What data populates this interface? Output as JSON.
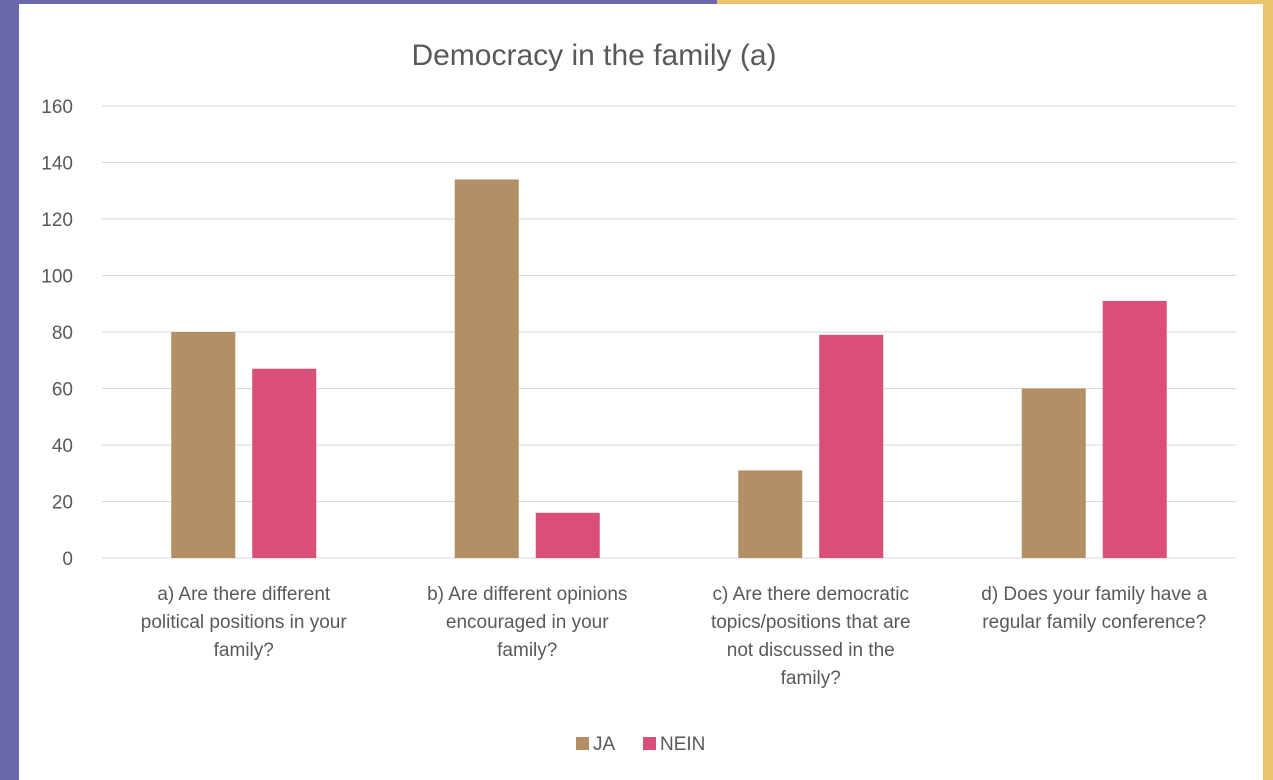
{
  "colors": {
    "frame_left": "#6b67ad",
    "frame_right": "#ebc46d",
    "ja": "#b38f65",
    "nein": "#d94f77"
  },
  "chart_data": {
    "type": "bar",
    "title": "Democracy in the family (a)",
    "xlabel": "",
    "ylabel": "",
    "ylim": [
      0,
      160
    ],
    "yticks": [
      0,
      20,
      40,
      60,
      80,
      100,
      120,
      140,
      160
    ],
    "grid": true,
    "legend_position": "bottom",
    "categories": [
      [
        "a) Are there different",
        "political positions in your",
        "family?"
      ],
      [
        "b) Are different opinions",
        "encouraged in your",
        "family?"
      ],
      [
        "c) Are there democratic",
        "topics/positions that are",
        "not discussed in the",
        "family?"
      ],
      [
        "d) Does your family have a",
        "regular family conference?"
      ]
    ],
    "series": [
      {
        "name": "JA",
        "values": [
          80,
          134,
          31,
          60
        ]
      },
      {
        "name": "NEIN",
        "values": [
          67,
          16,
          79,
          91
        ]
      }
    ]
  }
}
